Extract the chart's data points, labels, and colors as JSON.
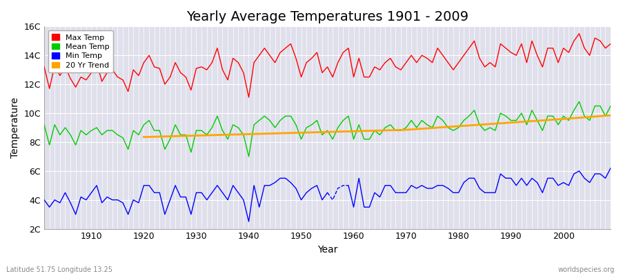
{
  "title": "Yearly Average Temperatures 1901 - 2009",
  "xlabel": "Year",
  "ylabel": "Temperature",
  "footnote_left": "Latitude 51.75 Longitude 13.25",
  "footnote_right": "worldspecies.org",
  "legend_labels": [
    "Max Temp",
    "Mean Temp",
    "Min Temp",
    "20 Yr Trend"
  ],
  "legend_colors": [
    "#ff0000",
    "#00cc00",
    "#0000ff",
    "#ffa500"
  ],
  "ylim": [
    2,
    16
  ],
  "yticks": [
    2,
    4,
    6,
    8,
    10,
    12,
    14,
    16
  ],
  "ytick_labels": [
    "2C",
    "4C",
    "6C",
    "8C",
    "10C",
    "12C",
    "14C",
    "16C"
  ],
  "xlim": [
    1901,
    2009
  ],
  "xticks": [
    1910,
    1920,
    1930,
    1940,
    1950,
    1960,
    1970,
    1980,
    1990,
    2000
  ],
  "fig_bg_color": "#ffffff",
  "ax_bg_color": "#e0e0ec",
  "title_fontsize": 14,
  "years": [
    1901,
    1902,
    1903,
    1904,
    1905,
    1906,
    1907,
    1908,
    1909,
    1910,
    1911,
    1912,
    1913,
    1914,
    1915,
    1916,
    1917,
    1918,
    1919,
    1920,
    1921,
    1922,
    1923,
    1924,
    1925,
    1926,
    1927,
    1928,
    1929,
    1930,
    1931,
    1932,
    1933,
    1934,
    1935,
    1936,
    1937,
    1938,
    1939,
    1940,
    1941,
    1942,
    1943,
    1944,
    1945,
    1946,
    1947,
    1948,
    1949,
    1950,
    1951,
    1952,
    1953,
    1954,
    1955,
    1956,
    1957,
    1958,
    1959,
    1960,
    1961,
    1962,
    1963,
    1964,
    1965,
    1966,
    1967,
    1968,
    1969,
    1970,
    1971,
    1972,
    1973,
    1974,
    1975,
    1976,
    1977,
    1978,
    1979,
    1980,
    1981,
    1982,
    1983,
    1984,
    1985,
    1986,
    1987,
    1988,
    1989,
    1990,
    1991,
    1992,
    1993,
    1994,
    1995,
    1996,
    1997,
    1998,
    1999,
    2000,
    2001,
    2002,
    2003,
    2004,
    2005,
    2006,
    2007,
    2008,
    2009
  ],
  "max_temp": [
    13.2,
    11.7,
    13.3,
    12.6,
    13.2,
    12.4,
    11.8,
    12.5,
    12.3,
    12.8,
    13.5,
    12.2,
    12.8,
    13.0,
    12.5,
    12.3,
    11.5,
    13.0,
    12.6,
    13.5,
    14.0,
    13.2,
    13.1,
    12.0,
    12.5,
    13.5,
    12.8,
    12.5,
    11.6,
    13.1,
    13.2,
    13.0,
    13.5,
    14.5,
    13.0,
    12.3,
    13.8,
    13.5,
    12.8,
    11.1,
    13.5,
    14.0,
    14.5,
    14.0,
    13.5,
    14.2,
    14.5,
    14.8,
    13.8,
    12.5,
    13.5,
    13.8,
    14.2,
    12.8,
    13.2,
    12.5,
    13.5,
    14.2,
    14.5,
    12.5,
    13.8,
    12.5,
    12.5,
    13.2,
    13.0,
    13.5,
    13.8,
    13.2,
    13.0,
    13.5,
    14.0,
    13.5,
    14.0,
    13.8,
    13.5,
    14.5,
    14.0,
    13.5,
    13.0,
    13.5,
    14.0,
    14.5,
    15.0,
    13.8,
    13.2,
    13.5,
    13.2,
    14.8,
    14.5,
    14.2,
    14.0,
    14.8,
    13.5,
    15.0,
    14.0,
    13.2,
    14.5,
    14.5,
    13.5,
    14.5,
    14.2,
    15.0,
    15.5,
    14.5,
    14.0,
    15.2,
    15.0,
    14.5,
    14.8
  ],
  "mean_temp": [
    9.2,
    7.8,
    9.2,
    8.5,
    9.0,
    8.5,
    7.8,
    8.8,
    8.5,
    8.8,
    9.0,
    8.5,
    8.8,
    8.8,
    8.5,
    8.3,
    7.5,
    8.8,
    8.5,
    9.2,
    9.5,
    8.8,
    8.8,
    7.5,
    8.2,
    9.2,
    8.5,
    8.5,
    7.3,
    8.8,
    8.8,
    8.5,
    9.0,
    9.8,
    8.8,
    8.2,
    9.2,
    9.0,
    8.5,
    7.0,
    9.2,
    9.5,
    9.8,
    9.5,
    9.0,
    9.5,
    9.8,
    9.8,
    9.2,
    8.2,
    9.0,
    9.2,
    9.5,
    8.5,
    8.8,
    8.2,
    9.0,
    9.5,
    9.8,
    8.2,
    9.2,
    8.2,
    8.2,
    8.8,
    8.5,
    9.0,
    9.2,
    8.8,
    8.8,
    9.0,
    9.5,
    9.0,
    9.5,
    9.2,
    9.0,
    9.8,
    9.5,
    9.0,
    8.8,
    9.0,
    9.5,
    9.8,
    10.2,
    9.2,
    8.8,
    9.0,
    8.8,
    10.0,
    9.8,
    9.5,
    9.5,
    10.0,
    9.2,
    10.2,
    9.5,
    8.8,
    9.8,
    9.8,
    9.2,
    9.8,
    9.5,
    10.2,
    10.8,
    9.8,
    9.5,
    10.5,
    10.5,
    9.8,
    10.5
  ],
  "min_temp": [
    4.0,
    3.5,
    4.0,
    3.8,
    4.5,
    3.8,
    3.0,
    4.2,
    4.0,
    4.5,
    5.0,
    3.8,
    4.2,
    4.0,
    4.0,
    3.8,
    3.0,
    4.0,
    3.8,
    5.0,
    5.0,
    4.5,
    4.5,
    3.0,
    4.0,
    5.0,
    4.2,
    4.2,
    3.0,
    4.5,
    4.5,
    4.0,
    4.5,
    5.0,
    4.5,
    4.0,
    5.0,
    4.5,
    4.0,
    2.5,
    5.0,
    3.5,
    5.0,
    5.0,
    5.2,
    5.5,
    5.5,
    5.2,
    4.8,
    4.0,
    4.5,
    4.8,
    5.0,
    4.0,
    4.5,
    4.0,
    4.8,
    5.0,
    5.0,
    3.5,
    5.5,
    3.5,
    3.5,
    4.5,
    4.2,
    5.0,
    5.0,
    4.5,
    4.5,
    4.5,
    5.0,
    4.8,
    5.0,
    4.8,
    4.8,
    5.0,
    5.0,
    4.8,
    4.5,
    4.5,
    5.2,
    5.5,
    5.5,
    4.8,
    4.5,
    4.5,
    4.5,
    5.8,
    5.5,
    5.5,
    5.0,
    5.5,
    5.0,
    5.5,
    5.2,
    4.5,
    5.5,
    5.5,
    5.0,
    5.2,
    5.0,
    5.8,
    6.0,
    5.5,
    5.2,
    5.8,
    5.8,
    5.5,
    6.2
  ],
  "trend_points_x": [
    1920,
    1930,
    1940,
    1950,
    1960,
    1970,
    1980,
    1990,
    2000,
    2009
  ],
  "trend_points_y": [
    8.35,
    8.45,
    8.55,
    8.65,
    8.75,
    8.85,
    9.1,
    9.35,
    9.6,
    9.85
  ]
}
